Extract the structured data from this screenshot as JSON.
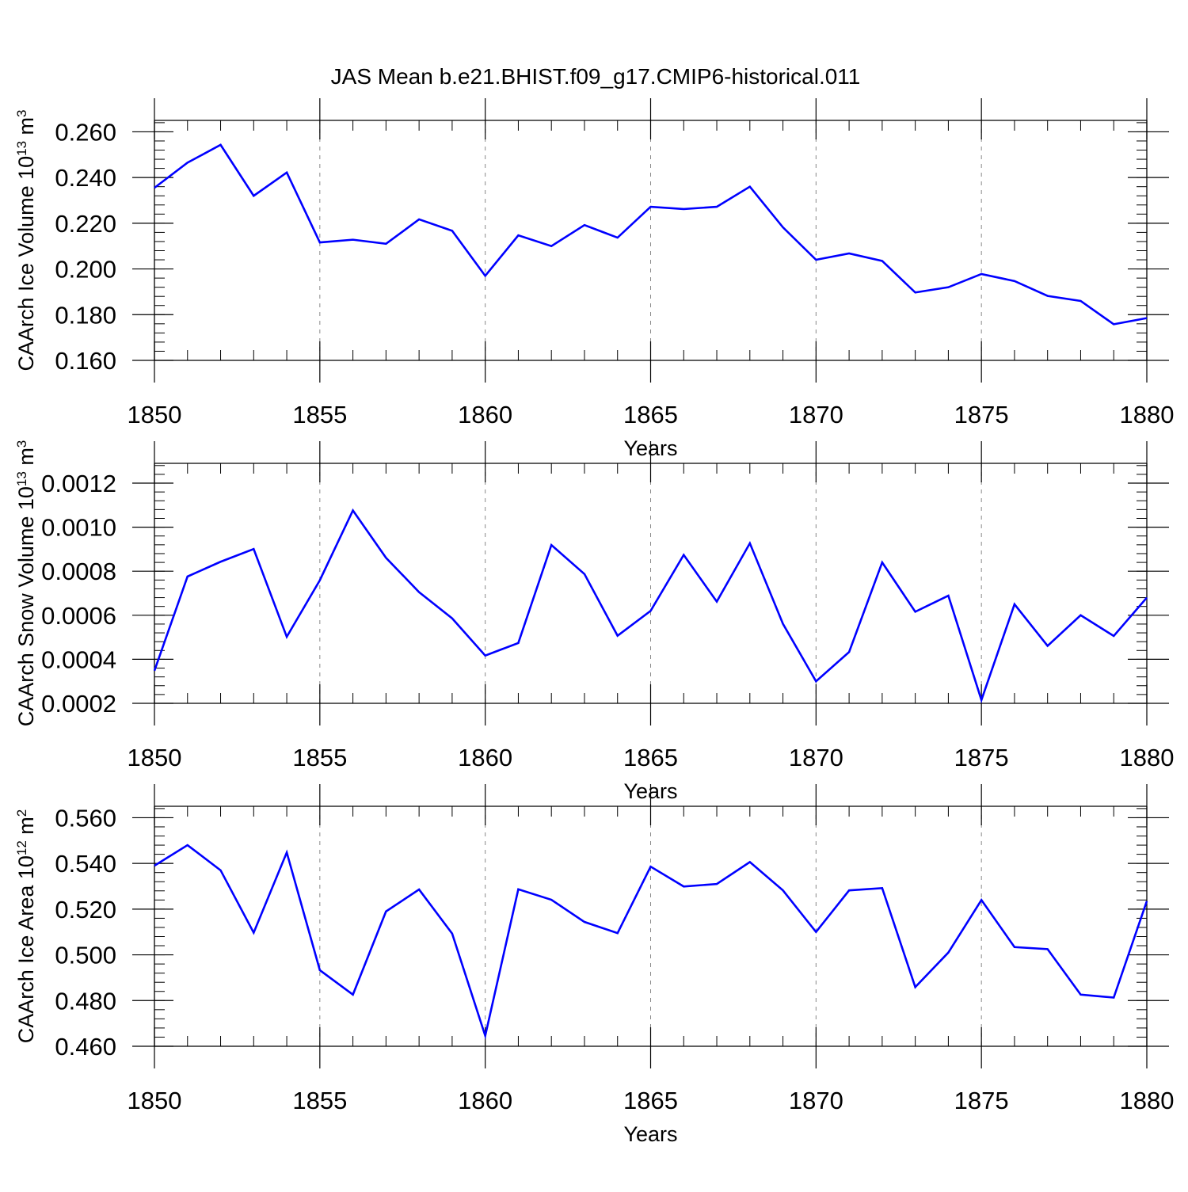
{
  "title": "JAS Mean b.e21.BHIST.f09_g17.CMIP6-historical.011",
  "line_color": "#0000ff",
  "axis_color": "#000000",
  "grid_color": "#888888",
  "chart_data": [
    {
      "type": "line",
      "name": "ice-volume",
      "ylabel_main": "CAArch Ice Volume 10",
      "ylabel_exp": "13",
      "ylabel_unit": " m",
      "ylabel_unit_exp": "3",
      "xlabel": "Years",
      "xlim": [
        1850,
        1880
      ],
      "ylim": [
        0.16,
        0.265
      ],
      "yticks": [
        0.16,
        0.18,
        0.2,
        0.22,
        0.24,
        0.26
      ],
      "ytick_labels": [
        "0.160",
        "0.180",
        "0.200",
        "0.220",
        "0.240",
        "0.260"
      ],
      "xticks": [
        1850,
        1855,
        1860,
        1865,
        1870,
        1875,
        1880
      ],
      "xtick_labels": [
        "1850",
        "1855",
        "1860",
        "1865",
        "1870",
        "1875",
        "1880"
      ],
      "x": [
        1850,
        1851,
        1852,
        1853,
        1854,
        1855,
        1856,
        1857,
        1858,
        1859,
        1860,
        1861,
        1862,
        1863,
        1864,
        1865,
        1866,
        1867,
        1868,
        1869,
        1870,
        1871,
        1872,
        1873,
        1874,
        1875,
        1876,
        1877,
        1878,
        1879,
        1880
      ],
      "values": [
        0.2355,
        0.2465,
        0.2543,
        0.232,
        0.2422,
        0.2116,
        0.2128,
        0.211,
        0.2217,
        0.2167,
        0.197,
        0.2147,
        0.21,
        0.2192,
        0.2137,
        0.2272,
        0.2262,
        0.2272,
        0.236,
        0.2182,
        0.204,
        0.2068,
        0.2035,
        0.1897,
        0.192,
        0.1978,
        0.1947,
        0.1882,
        0.186,
        0.1758,
        0.1785
      ]
    },
    {
      "type": "line",
      "name": "snow-volume",
      "ylabel_main": "CAArch Snow Volume 10",
      "ylabel_exp": "13",
      "ylabel_unit": " m",
      "ylabel_unit_exp": "3",
      "xlabel": "Years",
      "xlim": [
        1850,
        1880
      ],
      "ylim": [
        0.0002,
        0.00129
      ],
      "yticks": [
        0.0002,
        0.0004,
        0.0006,
        0.0008,
        0.001,
        0.0012
      ],
      "ytick_labels": [
        "0.0002",
        "0.0004",
        "0.0006",
        "0.0008",
        "0.0010",
        "0.0012"
      ],
      "xticks": [
        1850,
        1855,
        1860,
        1865,
        1870,
        1875,
        1880
      ],
      "xtick_labels": [
        "1850",
        "1855",
        "1860",
        "1865",
        "1870",
        "1875",
        "1880"
      ],
      "x": [
        1850,
        1851,
        1852,
        1853,
        1854,
        1855,
        1856,
        1857,
        1858,
        1859,
        1860,
        1861,
        1862,
        1863,
        1864,
        1865,
        1866,
        1867,
        1868,
        1869,
        1870,
        1871,
        1872,
        1873,
        1874,
        1875,
        1876,
        1877,
        1878,
        1879,
        1880
      ],
      "values": [
        0.000348,
        0.000776,
        0.000843,
        0.000901,
        0.000502,
        0.000759,
        0.001076,
        0.000861,
        0.000705,
        0.000586,
        0.000417,
        0.000474,
        0.000919,
        0.000787,
        0.000507,
        0.00062,
        0.000874,
        0.000662,
        0.000927,
        0.000561,
        0.0003,
        0.000433,
        0.00084,
        0.000616,
        0.000689,
        0.000215,
        0.00065,
        0.000461,
        0.0006,
        0.000506,
        0.00068
      ]
    },
    {
      "type": "line",
      "name": "ice-area",
      "ylabel_main": "CAArch Ice Area 10",
      "ylabel_exp": "12",
      "ylabel_unit": " m",
      "ylabel_unit_exp": "2",
      "xlabel": "Years",
      "xlim": [
        1850,
        1880
      ],
      "ylim": [
        0.46,
        0.565
      ],
      "yticks": [
        0.46,
        0.48,
        0.5,
        0.52,
        0.54,
        0.56
      ],
      "ytick_labels": [
        "0.460",
        "0.480",
        "0.500",
        "0.520",
        "0.540",
        "0.560"
      ],
      "xticks": [
        1850,
        1855,
        1860,
        1865,
        1870,
        1875,
        1880
      ],
      "xtick_labels": [
        "1850",
        "1855",
        "1860",
        "1865",
        "1870",
        "1875",
        "1880"
      ],
      "x": [
        1850,
        1851,
        1852,
        1853,
        1854,
        1855,
        1856,
        1857,
        1858,
        1859,
        1860,
        1861,
        1862,
        1863,
        1864,
        1865,
        1866,
        1867,
        1868,
        1869,
        1870,
        1871,
        1872,
        1873,
        1874,
        1875,
        1876,
        1877,
        1878,
        1879,
        1880
      ],
      "values": [
        0.539,
        0.548,
        0.537,
        0.5097,
        0.5448,
        0.4933,
        0.4826,
        0.519,
        0.5286,
        0.5093,
        0.4646,
        0.5287,
        0.5241,
        0.5144,
        0.5095,
        0.5386,
        0.5299,
        0.531,
        0.5406,
        0.5282,
        0.51,
        0.5282,
        0.5292,
        0.4859,
        0.501,
        0.524,
        0.5034,
        0.5025,
        0.4826,
        0.4813,
        0.5235
      ]
    }
  ]
}
